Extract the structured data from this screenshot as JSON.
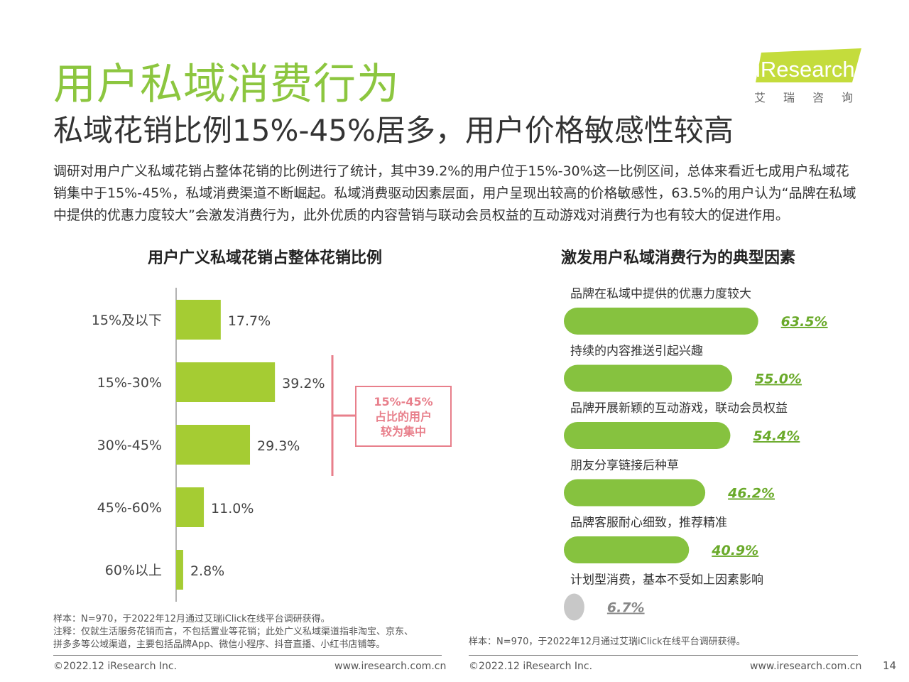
{
  "header": {
    "title": "用户私域消费行为",
    "subtitle": "私域花销比例15%-45%居多，用户价格敏感性较高",
    "intro": "调研对用户广义私域花销占整体花销的比例进行了统计，其中39.2%的用户位于15%-30%这一比例区间，总体来看近七成用户私域花销集中于15%-45%，私域消费渠道不断崛起。私域消费驱动因素层面，用户呈现出较高的价格敏感性，63.5%的用户认为“品牌在私域中提供的优惠力度较大”会激发消费行为，此外优质的内容营销与联动会员权益的互动游戏对消费行为也有较大的促进作用。"
  },
  "logo": {
    "text": "iResearch",
    "cn": "艾瑞咨询"
  },
  "colors": {
    "title_green": "#8cc63f",
    "bar_green": "#a5cc33",
    "right_green": "#86c23f",
    "callout": "#e87f8b",
    "gray_bar": "#c8c8c8"
  },
  "callout": {
    "line1": "15%-45%",
    "line2": "占比的用户",
    "line3": "较为集中"
  },
  "left_notes": {
    "line1": "样本：N=970，于2022年12月通过艾瑞iClick在线平台调研获得。",
    "line2": "注释：仅就生活服务花销而言，不包括置业等花销；此处广义私域渠道指非淘宝、京东、",
    "line3": "拼多多等公域渠道，主要包括品牌App、微信小程序、抖音直播、小红书店铺等。"
  },
  "right_notes": {
    "line1": "样本：N=970，于2022年12月通过艾瑞iClick在线平台调研获得。"
  },
  "footer": {
    "copyright_left": "©2022.12 iResearch Inc.",
    "url_left": "www.iresearch.com.cn",
    "copyright_right": "©2022.12 iResearch Inc.",
    "url_right": "www.iresearch.com.cn",
    "page": "14"
  },
  "chart_data": [
    {
      "type": "bar",
      "orientation": "horizontal",
      "title": "用户广义私域花销占整体花销比例",
      "categories": [
        "15%及以下",
        "15%-30%",
        "30%-45%",
        "45%-60%",
        "60%以上"
      ],
      "values": [
        17.7,
        39.2,
        29.3,
        11.0,
        2.8
      ],
      "value_labels": [
        "17.7%",
        "39.2%",
        "29.3%",
        "11.0%",
        "2.8%"
      ],
      "xlim": [
        0,
        100
      ]
    },
    {
      "type": "bar",
      "orientation": "horizontal",
      "title": "激发用户私域消费行为的典型因素",
      "categories": [
        "品牌在私域中提供的优惠力度较大",
        "持续的内容推送引起兴趣",
        "品牌开展新颖的互动游戏，联动会员权益",
        "朋友分享链接后种草",
        "品牌客服耐心细致，推荐精准",
        "计划型消费，基本不受如上因素影响"
      ],
      "values": [
        63.5,
        55.0,
        54.4,
        46.2,
        40.9,
        6.7
      ],
      "value_labels": [
        "63.5%",
        "55.0%",
        "54.4%",
        "46.2%",
        "40.9%",
        "6.7%"
      ],
      "xlim": [
        0,
        100
      ]
    }
  ]
}
